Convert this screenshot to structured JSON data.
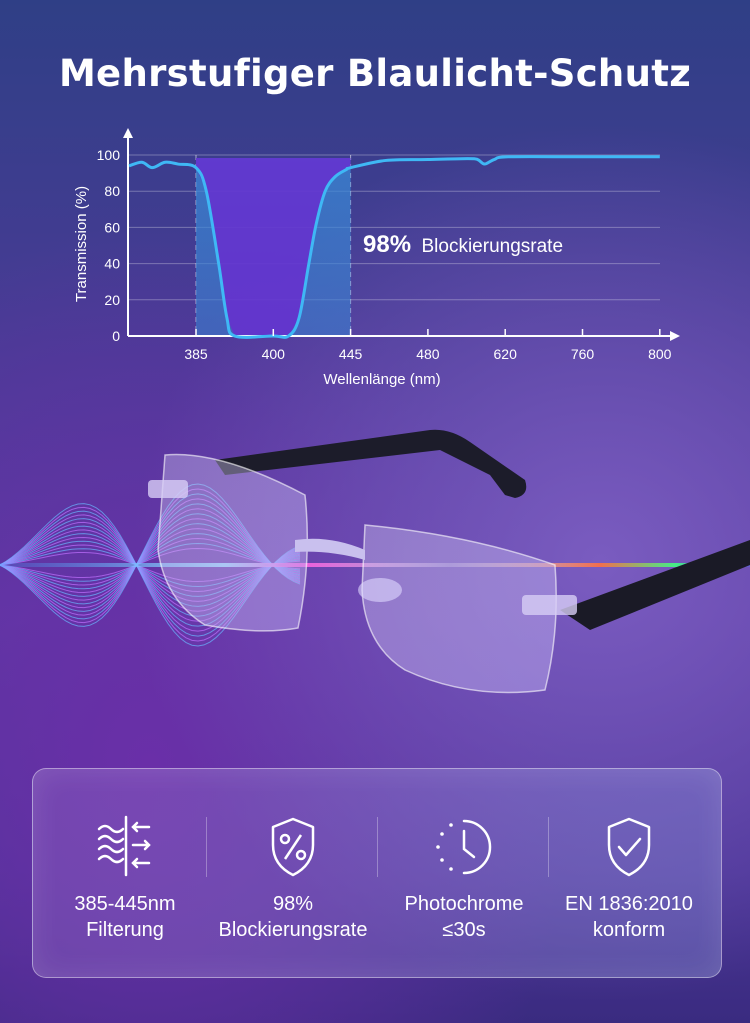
{
  "title": "Mehrstufiger Blaulicht-Schutz",
  "chart_data": {
    "type": "line",
    "xlabel": "Wellenlänge (nm)",
    "ylabel": "Transmission (%)",
    "x_ticks": [
      385,
      400,
      445,
      480,
      620,
      760,
      800
    ],
    "y_ticks": [
      0,
      20,
      40,
      60,
      80,
      100
    ],
    "ylim": [
      0,
      100
    ],
    "grid": true,
    "highlight_band": [
      385,
      445
    ],
    "annotation": {
      "value": "98%",
      "text": "Blockierungsrate"
    },
    "series": [
      {
        "x": [
          372,
          374.5,
          376.5,
          379,
          381.5,
          385,
          387,
          389.4,
          391,
          392.5,
          400,
          408.9,
          415,
          420.7,
          425,
          430.2,
          436,
          442.6,
          445,
          461,
          480,
          552,
          570,
          582.6,
          600,
          625.6,
          760,
          800
        ],
        "y": [
          94,
          96,
          93,
          96,
          95,
          93,
          80,
          40,
          10,
          0,
          0,
          0,
          10,
          40,
          62,
          80,
          88,
          92,
          93,
          97,
          97.5,
          98,
          97.5,
          95,
          97.5,
          99,
          99,
          99
        ]
      }
    ],
    "colors": {
      "line": "#3fb8f5",
      "band": "#3a7fd0"
    }
  },
  "features": [
    {
      "icon": "wave-filter-icon",
      "line1": "385-445nm",
      "line2": "Filterung"
    },
    {
      "icon": "shield-percent-icon",
      "line1": "98%",
      "line2": "Blockierungsrate"
    },
    {
      "icon": "clock-icon",
      "line1": "Photochrome",
      "line2": "≤30s"
    },
    {
      "icon": "shield-check-icon",
      "line1": "EN 1836:2010",
      "line2": "konform"
    }
  ]
}
